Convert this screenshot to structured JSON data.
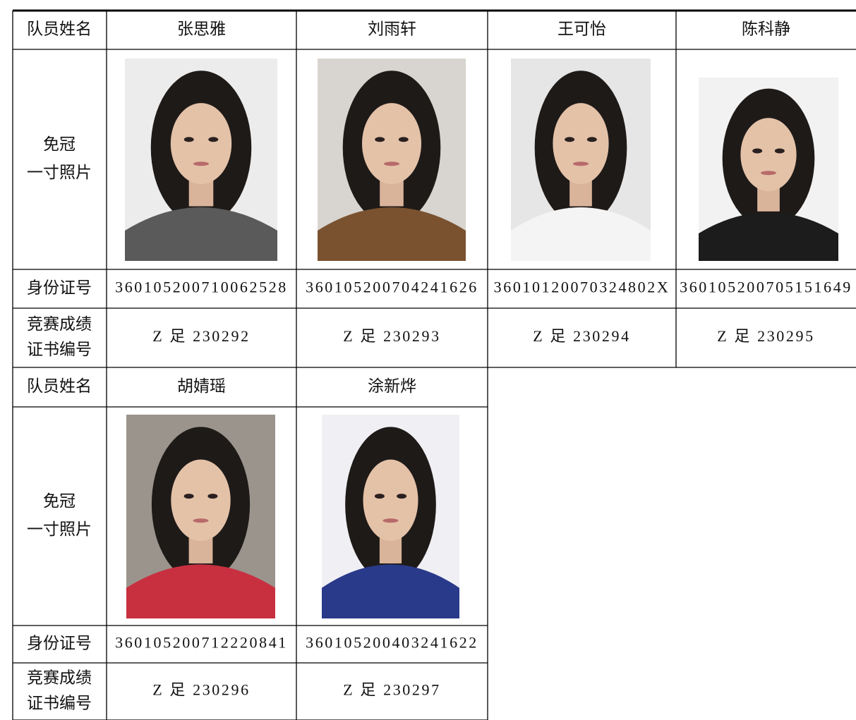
{
  "blocks": [
    {
      "name_label": "队员姓名",
      "names": [
        "张思雅",
        "刘雨轩",
        "王可怡",
        "陈科静"
      ],
      "photo_label": [
        "免冠",
        "一寸照片"
      ],
      "id_label": "身份证号",
      "ids": [
        "360105200710062528",
        "360105200704241626",
        "36010120070324802X",
        "360105200705151649"
      ],
      "cert_label": [
        "竞赛成绩",
        "证书编号"
      ],
      "certs": [
        "Z 足 230292",
        "Z 足 230293",
        "Z 足 230294",
        "Z 足 230295"
      ]
    },
    {
      "name_label": "队员姓名",
      "names": [
        "胡婧瑶",
        "涂新烨"
      ],
      "photo_label": [
        "免冠",
        "一寸照片"
      ],
      "id_label": "身份证号",
      "ids": [
        "360105200712220841",
        "360105200403241622"
      ],
      "cert_label": [
        "竞赛成绩",
        "证书编号"
      ],
      "certs": [
        "Z 足 230296",
        "Z 足 230297"
      ]
    }
  ]
}
